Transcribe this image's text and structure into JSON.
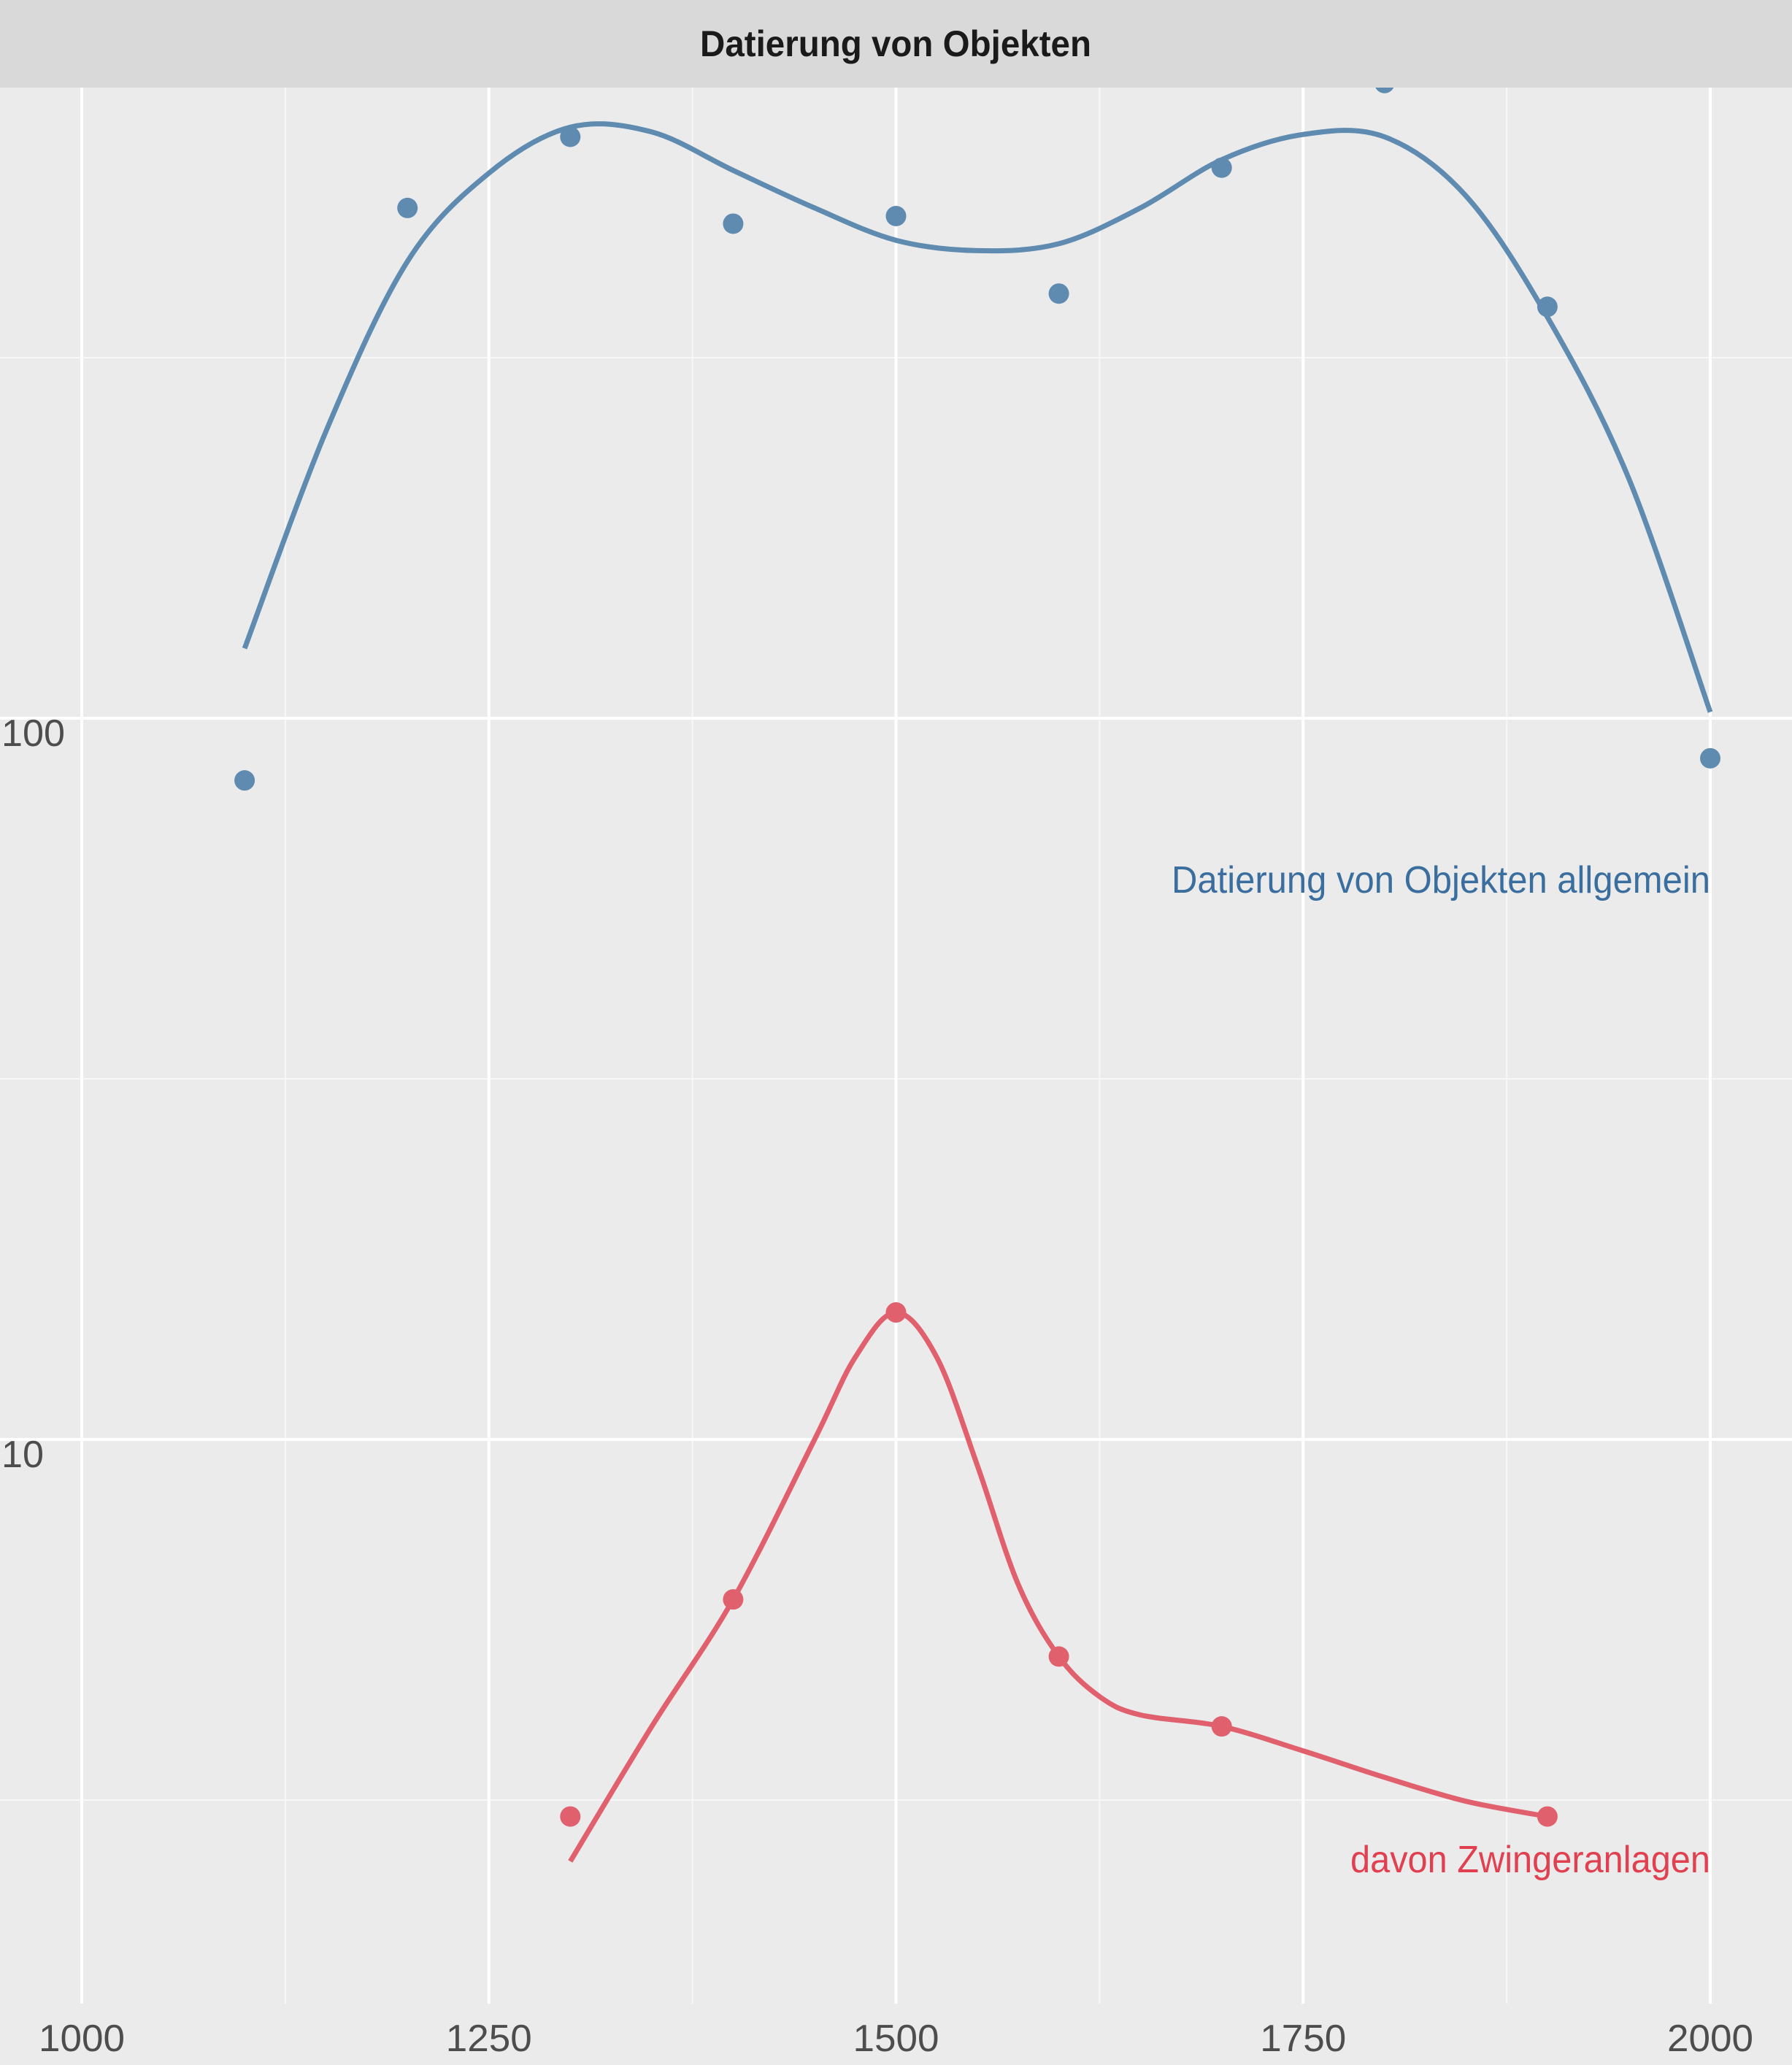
{
  "chart_data": {
    "type": "line",
    "title": "Datierung von Objekten",
    "xlabel": "",
    "ylabel": "",
    "x_scale": "linear",
    "y_scale": "log10",
    "xlim": [
      950,
      2050
    ],
    "ylim": [
      2.5,
      800
    ],
    "x_ticks": [
      1000,
      1250,
      1500,
      1750,
      2000
    ],
    "y_ticks": [
      10,
      100
    ],
    "grid": true,
    "legend": "none",
    "series": [
      {
        "name": "Datierung von Objekten allgemein",
        "color": "#5f8bb0",
        "label_color": "#3a6e9e",
        "points": [
          {
            "x": 1100,
            "y": 82
          },
          {
            "x": 1200,
            "y": 510
          },
          {
            "x": 1300,
            "y": 640
          },
          {
            "x": 1400,
            "y": 485
          },
          {
            "x": 1500,
            "y": 497
          },
          {
            "x": 1600,
            "y": 388
          },
          {
            "x": 1700,
            "y": 580
          },
          {
            "x": 1800,
            "y": 760
          },
          {
            "x": 1900,
            "y": 372
          },
          {
            "x": 2000,
            "y": 88
          }
        ],
        "smooth": [
          {
            "x": 1100,
            "y": 125
          },
          {
            "x": 1150,
            "y": 250
          },
          {
            "x": 1200,
            "y": 430
          },
          {
            "x": 1250,
            "y": 570
          },
          {
            "x": 1300,
            "y": 660
          },
          {
            "x": 1350,
            "y": 650
          },
          {
            "x": 1400,
            "y": 575
          },
          {
            "x": 1450,
            "y": 510
          },
          {
            "x": 1500,
            "y": 460
          },
          {
            "x": 1550,
            "y": 445
          },
          {
            "x": 1600,
            "y": 455
          },
          {
            "x": 1650,
            "y": 510
          },
          {
            "x": 1700,
            "y": 595
          },
          {
            "x": 1750,
            "y": 645
          },
          {
            "x": 1800,
            "y": 640
          },
          {
            "x": 1850,
            "y": 530
          },
          {
            "x": 1900,
            "y": 360
          },
          {
            "x": 1950,
            "y": 215
          },
          {
            "x": 2000,
            "y": 102
          }
        ]
      },
      {
        "name": "davon Zwingeranlagen",
        "color": "#e0606e",
        "label_color": "#e04050",
        "points": [
          {
            "x": 1300,
            "y": 3
          },
          {
            "x": 1400,
            "y": 6
          },
          {
            "x": 1500,
            "y": 15
          },
          {
            "x": 1600,
            "y": 5
          },
          {
            "x": 1700,
            "y": 4
          },
          {
            "x": 1900,
            "y": 3
          }
        ],
        "smooth": [
          {
            "x": 1300,
            "y": 2.6
          },
          {
            "x": 1350,
            "y": 4.0
          },
          {
            "x": 1400,
            "y": 6.0
          },
          {
            "x": 1450,
            "y": 10.0
          },
          {
            "x": 1475,
            "y": 13.0
          },
          {
            "x": 1500,
            "y": 15.0
          },
          {
            "x": 1525,
            "y": 13.0
          },
          {
            "x": 1550,
            "y": 9.2
          },
          {
            "x": 1575,
            "y": 6.3
          },
          {
            "x": 1600,
            "y": 5.0
          },
          {
            "x": 1625,
            "y": 4.4
          },
          {
            "x": 1650,
            "y": 4.15
          },
          {
            "x": 1700,
            "y": 4.0
          },
          {
            "x": 1750,
            "y": 3.7
          },
          {
            "x": 1800,
            "y": 3.4
          },
          {
            "x": 1850,
            "y": 3.15
          },
          {
            "x": 1900,
            "y": 3.0
          }
        ]
      }
    ],
    "annotations": [
      {
        "text": "Datierung von Objekten allgemein",
        "series": 0
      },
      {
        "text": "davon Zwingeranlagen",
        "series": 1
      }
    ]
  }
}
